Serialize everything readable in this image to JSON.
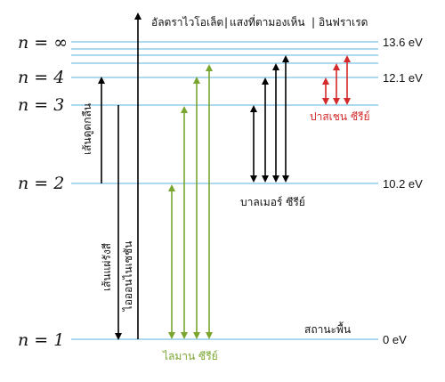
{
  "header": {
    "ultraviolet": "อัลตราไวโอเล็ต",
    "visible": "แสงที่ตามองเห็น",
    "infrared": "อินฟราเรด",
    "separator": "|"
  },
  "levels": [
    {
      "n_label": "n = 1",
      "energy_label": "0 eV",
      "name": "สถานะพื้น"
    },
    {
      "n_label": "n = 2",
      "energy_label": "10.2 eV"
    },
    {
      "n_label": "n = 3",
      "energy_label": ""
    },
    {
      "n_label": "n = 4",
      "energy_label": "12.1 eV"
    },
    {
      "n_label": "n = ∞",
      "energy_label": "13.6 eV"
    }
  ],
  "series": {
    "lyman": "ไลมาน ซีรีย์",
    "balmer": "บาลเมอร์ ซีรีย์",
    "paschen": "ปาสเชน ซีรีย์"
  },
  "labels": {
    "absorption": "เส้นดูดกลืน",
    "emission": "เส้นแผ่รังสี",
    "ionization": "ไอออนไนเซชัน"
  },
  "colors": {
    "level_line": "#7ec3e6",
    "lyman": "#7aa52f",
    "balmer": "#000000",
    "paschen": "#d42a2a",
    "text": "#111111"
  }
}
